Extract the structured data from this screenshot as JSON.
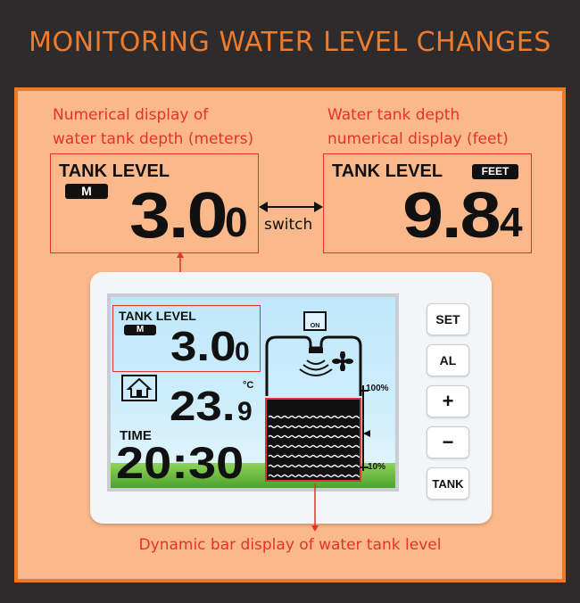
{
  "title": "MONITORING WATER LEVEL CHANGES",
  "caption_left": [
    "Numerical display of",
    "water tank depth (meters)"
  ],
  "caption_right": [
    "Water tank depth",
    "numerical display (feet)"
  ],
  "caption_bottom": "Dynamic bar display of water tank level",
  "switch_label": "switch",
  "meter_display": {
    "label": "TANK LEVEL",
    "unit": "M",
    "value_main": "3.0",
    "value_sub": "0"
  },
  "feet_display": {
    "label": "TANK LEVEL",
    "unit": "FEET",
    "value_main": "9.8",
    "value_sub": "4"
  },
  "device": {
    "tank_label": "TANK LEVEL",
    "tank_unit": "M",
    "tank_value_main": "3.0",
    "tank_value_sub": "0",
    "temp_unit": "°C",
    "temp_value_main": "23.",
    "temp_value_sub": "9",
    "time_label": "TIME",
    "time_value": "20:30",
    "pump_label": "ON",
    "scale_top": "100%",
    "scale_bottom": "10%",
    "water_level_fraction": 0.85
  },
  "buttons": [
    {
      "label": "SET"
    },
    {
      "label": "AL"
    },
    {
      "label": "+"
    },
    {
      "label": "−"
    },
    {
      "label": "TANK"
    }
  ],
  "colors": {
    "accent": "#ef7a22",
    "callout": "#e5322b",
    "panel": "#fbb98b",
    "background": "#2d2b2c"
  }
}
